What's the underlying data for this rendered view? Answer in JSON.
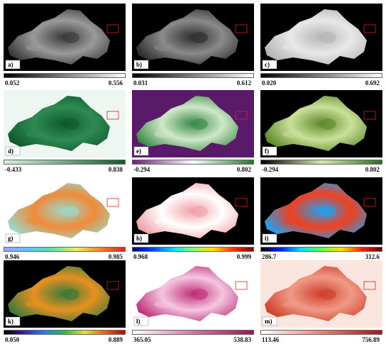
{
  "panels": [
    {
      "label": "a)",
      "min": "0.052",
      "max": "0.556"
    },
    {
      "label": "b)",
      "min": "0.031",
      "max": "0.612"
    },
    {
      "label": "c)",
      "min": "0.020",
      "max": "0.692"
    },
    {
      "label": "d)",
      "min": "-0.433",
      "max": "0.838"
    },
    {
      "label": "e)",
      "min": "-0.294",
      "max": "0.802"
    },
    {
      "label": "f)",
      "min": "-0.294",
      "max": "0.802"
    },
    {
      "label": "g)",
      "min": "0.946",
      "max": "0.985"
    },
    {
      "label": "h)",
      "min": "0.968",
      "max": "0.999"
    },
    {
      "label": "i)",
      "min": "286.7",
      "max": "312.6"
    },
    {
      "label": "k)",
      "min": "0.050",
      "max": "0.889"
    },
    {
      "label": "l)",
      "min": "365.05",
      "max": "538.83"
    },
    {
      "label": "m)",
      "min": "113.46",
      "max": "756.89"
    }
  ]
}
